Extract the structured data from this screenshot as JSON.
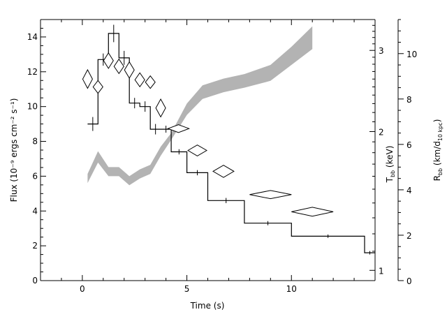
{
  "chart_data": {
    "type": "line",
    "xlabel": "Time (s)",
    "ylabel_left": "Flux (10⁻⁹ ergs cm⁻² s⁻¹)",
    "ylabel_right_inner": "T",
    "ylabel_right_inner_sub": "bb",
    "ylabel_right_inner_unit": " (keV)",
    "ylabel_right_outer": "R",
    "ylabel_right_outer_sub": "bb",
    "ylabel_right_outer_unit_pre": " (km/d",
    "ylabel_right_outer_unit_sub": "10 kpc",
    "ylabel_right_outer_unit_post": ")",
    "xlim": [
      -2,
      14
    ],
    "ylim": [
      0,
      15
    ],
    "x_ticks": [
      0,
      5,
      10
    ],
    "y_ticks": [
      0,
      2,
      4,
      6,
      8,
      10,
      12,
      14
    ],
    "kT_axis": {
      "scale": "log",
      "range": [
        0.95,
        3.5
      ],
      "ticks": [
        1,
        2,
        3
      ]
    },
    "radius_axis": {
      "range": [
        0,
        11.5
      ],
      "ticks": [
        0,
        2,
        4,
        6,
        8,
        10
      ]
    },
    "flux_histogram": {
      "bins": [
        {
          "x0": 0.25,
          "x1": 0.75,
          "y": 9.0,
          "err": 0.4
        },
        {
          "x0": 0.75,
          "x1": 1.25,
          "y": 12.7,
          "err": 0.35
        },
        {
          "x0": 1.25,
          "x1": 1.75,
          "y": 14.2,
          "err": 0.5
        },
        {
          "x0": 1.75,
          "x1": 2.25,
          "y": 12.8,
          "err": 0.4
        },
        {
          "x0": 2.25,
          "x1": 2.75,
          "y": 10.2,
          "err": 0.3
        },
        {
          "x0": 2.75,
          "x1": 3.25,
          "y": 10.0,
          "err": 0.3
        },
        {
          "x0": 3.25,
          "x1": 3.75,
          "y": 8.7,
          "err": 0.3
        },
        {
          "x0": 3.75,
          "x1": 4.25,
          "y": 8.7,
          "err": 0.2
        },
        {
          "x0": 4.25,
          "x1": 5.0,
          "y": 7.4,
          "err": 0.15
        },
        {
          "x0": 5.0,
          "x1": 6.0,
          "y": 6.2,
          "err": 0.15
        },
        {
          "x0": 6.0,
          "x1": 7.75,
          "y": 4.6,
          "err": 0.15
        },
        {
          "x0": 7.75,
          "x1": 10.0,
          "y": 3.3,
          "err": 0.12
        },
        {
          "x0": 10.0,
          "x1": 13.5,
          "y": 2.55,
          "err": 0.1
        },
        {
          "x0": 13.5,
          "x1": 14.0,
          "y": 1.6,
          "err": 0.1
        }
      ]
    },
    "temperature_diamonds": [
      {
        "x": 0.25,
        "kT": 2.6,
        "xerr": 0.2,
        "kTerr": 0.12
      },
      {
        "x": 0.75,
        "kT": 2.5,
        "xerr": 0.2,
        "kTerr": 0.08
      },
      {
        "x": 1.25,
        "kT": 2.85,
        "xerr": 0.2,
        "kTerr": 0.11
      },
      {
        "x": 1.75,
        "kT": 2.77,
        "xerr": 0.2,
        "kTerr": 0.1
      },
      {
        "x": 2.25,
        "kT": 2.72,
        "xerr": 0.2,
        "kTerr": 0.11
      },
      {
        "x": 2.75,
        "kT": 2.59,
        "xerr": 0.2,
        "kTerr": 0.09
      },
      {
        "x": 3.25,
        "kT": 2.56,
        "xerr": 0.2,
        "kTerr": 0.08
      },
      {
        "x": 3.75,
        "kT": 2.25,
        "xerr": 0.15,
        "kTerr": 0.1
      },
      {
        "x": 4.6,
        "kT": 2.03,
        "xerr": 0.5,
        "kTerr": 0.04
      },
      {
        "x": 5.5,
        "kT": 1.82,
        "xerr": 0.45,
        "kTerr": 0.05
      },
      {
        "x": 6.75,
        "kT": 1.64,
        "xerr": 0.5,
        "kTerr": 0.05
      },
      {
        "x": 9.0,
        "kT": 1.46,
        "xerr": 1.0,
        "kTerr": 0.03
      },
      {
        "x": 11.0,
        "kT": 1.34,
        "xerr": 1.0,
        "kTerr": 0.03
      }
    ],
    "radius_band": {
      "x": [
        0.25,
        0.75,
        1.25,
        1.75,
        2.25,
        2.75,
        3.25,
        3.75,
        4.25,
        5.0,
        5.75,
        6.75,
        7.75,
        9.0,
        10.0,
        11.0
      ],
      "lower": [
        4.3,
        5.2,
        4.6,
        4.6,
        4.2,
        4.5,
        4.7,
        5.5,
        6.2,
        7.3,
        8.0,
        8.3,
        8.5,
        8.8,
        9.5,
        10.2
      ],
      "upper": [
        4.7,
        5.7,
        5.0,
        5.0,
        4.6,
        4.9,
        5.1,
        5.9,
        6.5,
        7.8,
        8.6,
        8.9,
        9.1,
        9.5,
        10.3,
        11.2
      ]
    }
  }
}
